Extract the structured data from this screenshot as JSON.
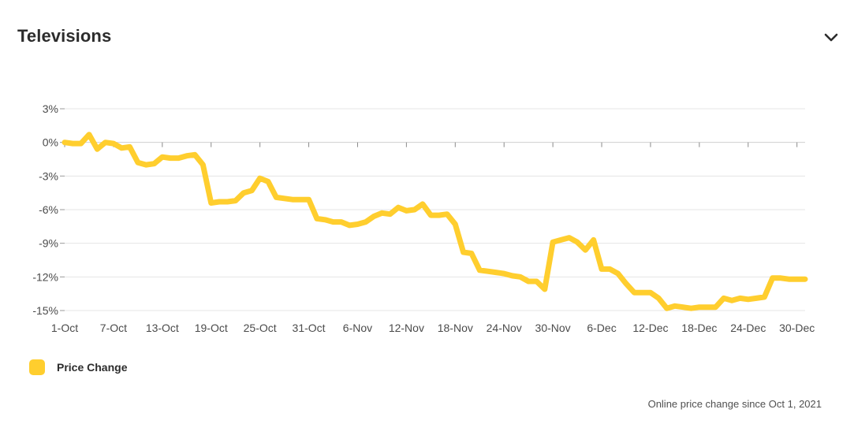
{
  "header": {
    "title": "Televisions",
    "toggle_icon": "chevron-down-icon"
  },
  "footnote": "Online price change since Oct 1, 2021",
  "colors": {
    "line": "#FFCE2E",
    "grid": "#e4e4e4",
    "axis": "#bdbdbd",
    "text": "#2c2c2c"
  },
  "chart_data": {
    "type": "line",
    "title": "",
    "xlabel": "",
    "ylabel": "",
    "ylim": [
      -15,
      3
    ],
    "y_ticks": [
      3,
      0,
      -3,
      -6,
      -9,
      -12,
      -15
    ],
    "y_tick_labels": [
      "3%",
      "0%",
      "-3%",
      "-6%",
      "-9%",
      "-12%",
      "-15%"
    ],
    "x_ticks": [
      0,
      6,
      12,
      18,
      24,
      30,
      36,
      42,
      48,
      54,
      60,
      66,
      72,
      78,
      84,
      90
    ],
    "x_tick_labels": [
      "1-Oct",
      "7-Oct",
      "13-Oct",
      "19-Oct",
      "25-Oct",
      "31-Oct",
      "6-Nov",
      "12-Nov",
      "18-Nov",
      "24-Nov",
      "30-Nov",
      "6-Dec",
      "12-Dec",
      "18-Dec",
      "24-Dec",
      "30-Dec"
    ],
    "x_range": [
      0,
      91
    ],
    "grid": true,
    "legend_position": "bottom-left",
    "series": [
      {
        "name": "Price Change",
        "color": "#FFCE2E",
        "x": [
          0,
          1,
          2,
          3,
          4,
          5,
          6,
          7,
          8,
          9,
          10,
          11,
          12,
          13,
          14,
          15,
          16,
          17,
          18,
          19,
          20,
          21,
          22,
          23,
          24,
          25,
          26,
          27,
          28,
          29,
          30,
          31,
          32,
          33,
          34,
          35,
          36,
          37,
          38,
          39,
          40,
          41,
          42,
          43,
          44,
          45,
          46,
          47,
          48,
          49,
          50,
          51,
          52,
          53,
          54,
          55,
          56,
          57,
          58,
          59,
          60,
          61,
          62,
          63,
          64,
          65,
          66,
          67,
          68,
          69,
          70,
          71,
          72,
          73,
          74,
          75,
          76,
          77,
          78,
          79,
          80,
          81,
          82,
          83,
          84,
          85,
          86,
          87,
          88,
          89,
          90,
          91
        ],
        "values": [
          0,
          -0.1,
          -0.1,
          0.7,
          -0.6,
          0,
          -0.1,
          -0.5,
          -0.4,
          -1.8,
          -2,
          -1.9,
          -1.3,
          -1.4,
          -1.4,
          -1.2,
          -1.1,
          -2,
          -5.4,
          -5.3,
          -5.3,
          -5.2,
          -4.5,
          -4.3,
          -3.2,
          -3.5,
          -4.9,
          -5,
          -5.1,
          -5.1,
          -5.1,
          -6.8,
          -6.9,
          -7.1,
          -7.1,
          -7.4,
          -7.3,
          -7.1,
          -6.6,
          -6.3,
          -6.4,
          -5.8,
          -6.1,
          -6,
          -5.5,
          -6.5,
          -6.5,
          -6.4,
          -7.3,
          -9.8,
          -9.9,
          -11.4,
          -11.5,
          -11.6,
          -11.7,
          -11.9,
          -12,
          -12.4,
          -12.4,
          -13.1,
          -8.9,
          -8.7,
          -8.5,
          -8.9,
          -9.6,
          -8.7,
          -11.3,
          -11.3,
          -11.7,
          -12.6,
          -13.4,
          -13.4,
          -13.4,
          -13.9,
          -14.8,
          -14.6,
          -14.7,
          -14.8,
          -14.7,
          -14.7,
          -14.7,
          -13.9,
          -14.1,
          -13.9,
          -14,
          -13.9,
          -13.8,
          -12.1,
          -12.1,
          -12.2,
          -12.2,
          -12.2
        ]
      }
    ]
  }
}
